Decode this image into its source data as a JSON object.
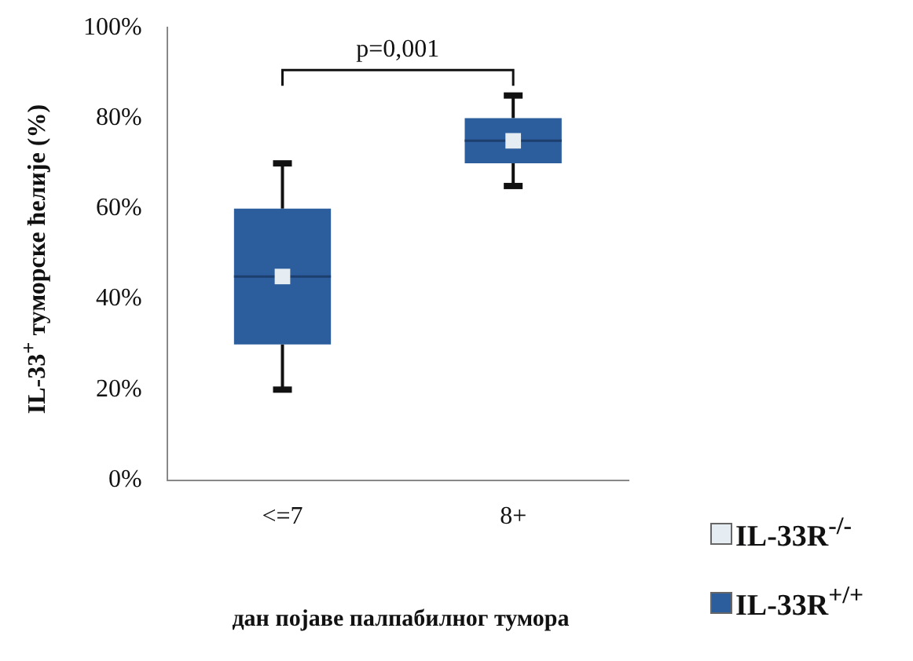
{
  "chart_data": {
    "type": "box",
    "xlabel": "дан појаве палпабилног тумора",
    "ylabel": "IL-33$^{+}$ туморске ћелије (%)",
    "categories": [
      "<=7",
      "8+"
    ],
    "ylim": [
      0,
      100
    ],
    "yticks": [
      {
        "value": 0,
        "label": "0%"
      },
      {
        "value": 20,
        "label": "20%"
      },
      {
        "value": 40,
        "label": "40%"
      },
      {
        "value": 60,
        "label": "60%"
      },
      {
        "value": 80,
        "label": "80%"
      },
      {
        "value": 100,
        "label": "100%"
      }
    ],
    "grid": false,
    "legend": "bottom right",
    "annotations": [
      "p=0,001"
    ],
    "series": [
      {
        "type": "scatter",
        "name": "IL-33R$^{-/-}$",
        "color": "#e6edf2",
        "marker": "square",
        "x": [
          "<=7",
          "8+"
        ],
        "values": [
          45,
          75
        ]
      },
      {
        "type": "box",
        "name": "IL-33R$^{+/+}$",
        "color": "#2c5d9c",
        "boxes": [
          {
            "low": 20,
            "q1": 30,
            "median": 45,
            "q3": 60,
            "high": 70
          },
          {
            "low": 65,
            "q1": 70,
            "median": 75,
            "q3": 80,
            "high": 85
          }
        ]
      }
    ]
  }
}
